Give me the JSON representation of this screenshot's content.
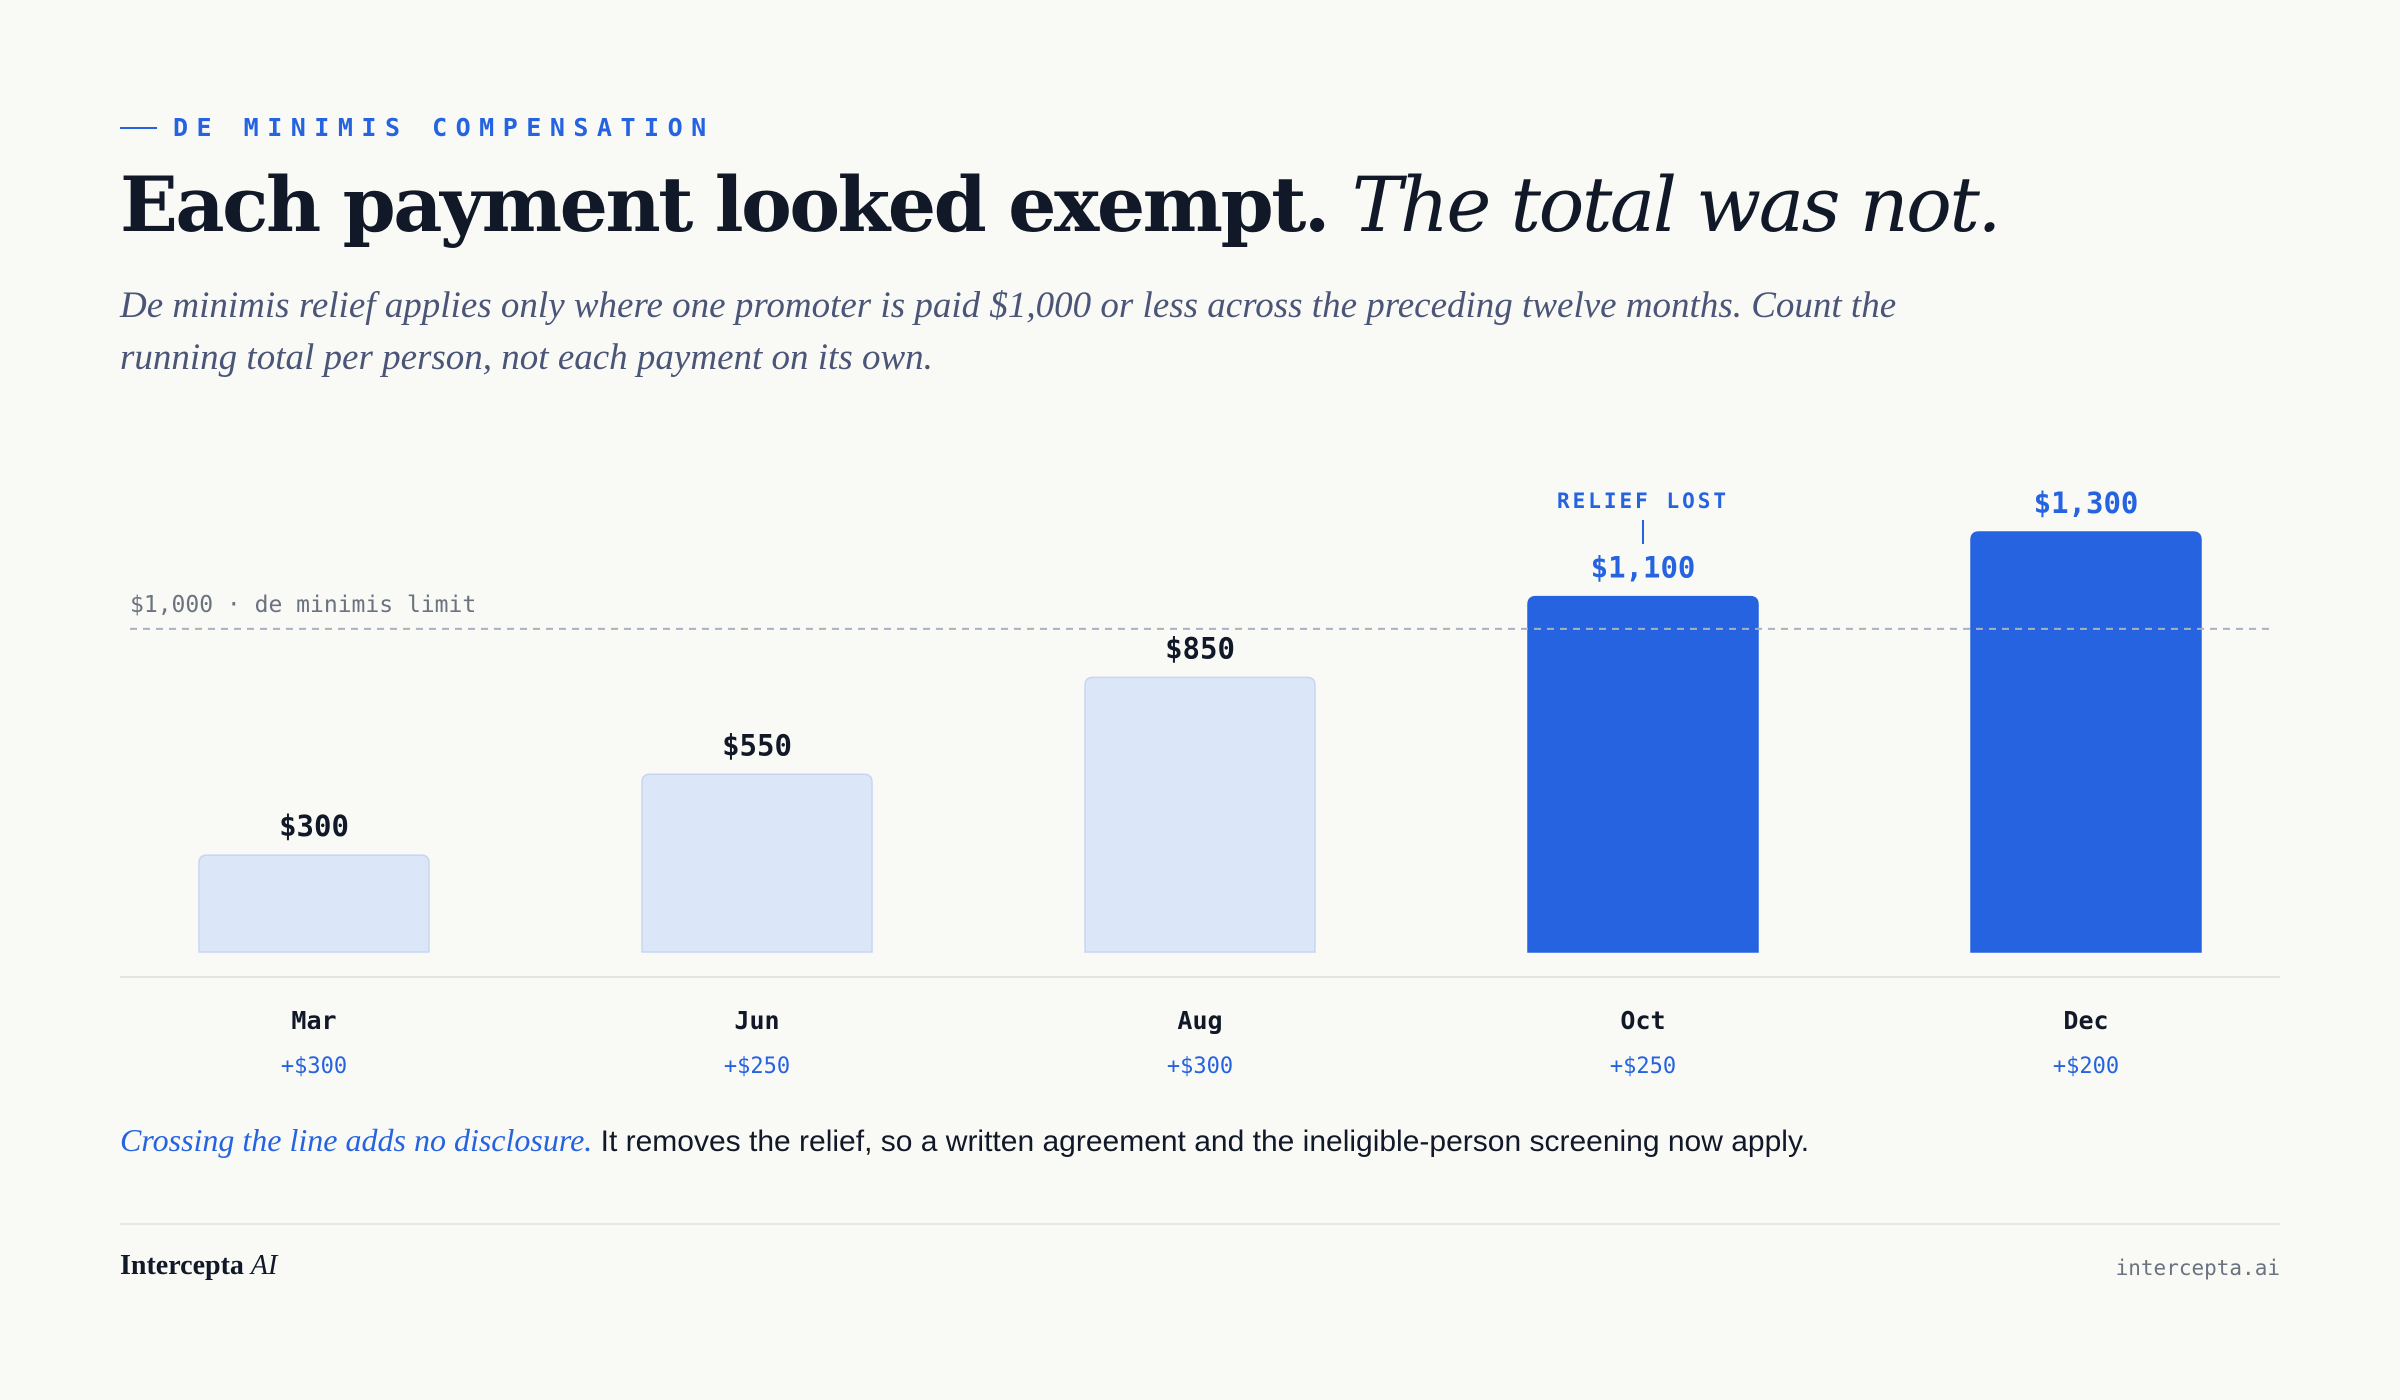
{
  "eyebrow": "DE MINIMIS COMPENSATION",
  "title": {
    "main": "Each payment looked exempt.",
    "emphasis": "The total was not."
  },
  "subtitle": "De minimis relief applies only where one promoter is paid $1,000 or less across the preceding twelve months. Count the running total per person, not each payment on its own.",
  "note": {
    "lead": "Crossing the line adds no disclosure.",
    "rest": " It removes the relief, so a written agreement and the ineligible-person screening now apply."
  },
  "footer": {
    "brand": "Intercepta",
    "brand_suffix": "AI",
    "site": "intercepta.ai"
  },
  "colors": {
    "accent": "#2563e0",
    "below_limit_fill": "#dce6f9",
    "below_limit_stroke": "#c7d5f3",
    "ink": "#111827",
    "muted": "#6b7280"
  },
  "chart_data": {
    "type": "bar",
    "categories": [
      "Mar",
      "Jun",
      "Aug",
      "Oct",
      "Dec"
    ],
    "values": [
      300,
      550,
      850,
      1100,
      1300
    ],
    "value_labels": [
      "$300",
      "$550",
      "$850",
      "$1,100",
      "$1,300"
    ],
    "increments": [
      "+$300",
      "+$250",
      "+$300",
      "+$250",
      "+$200"
    ],
    "ylim": [
      0,
      1300
    ],
    "threshold": {
      "value": 1000,
      "label": "$1,000 · de minimis limit"
    },
    "annotation": {
      "category": "Oct",
      "text": "RELIEF LOST"
    },
    "grid": false,
    "legend": "none"
  }
}
